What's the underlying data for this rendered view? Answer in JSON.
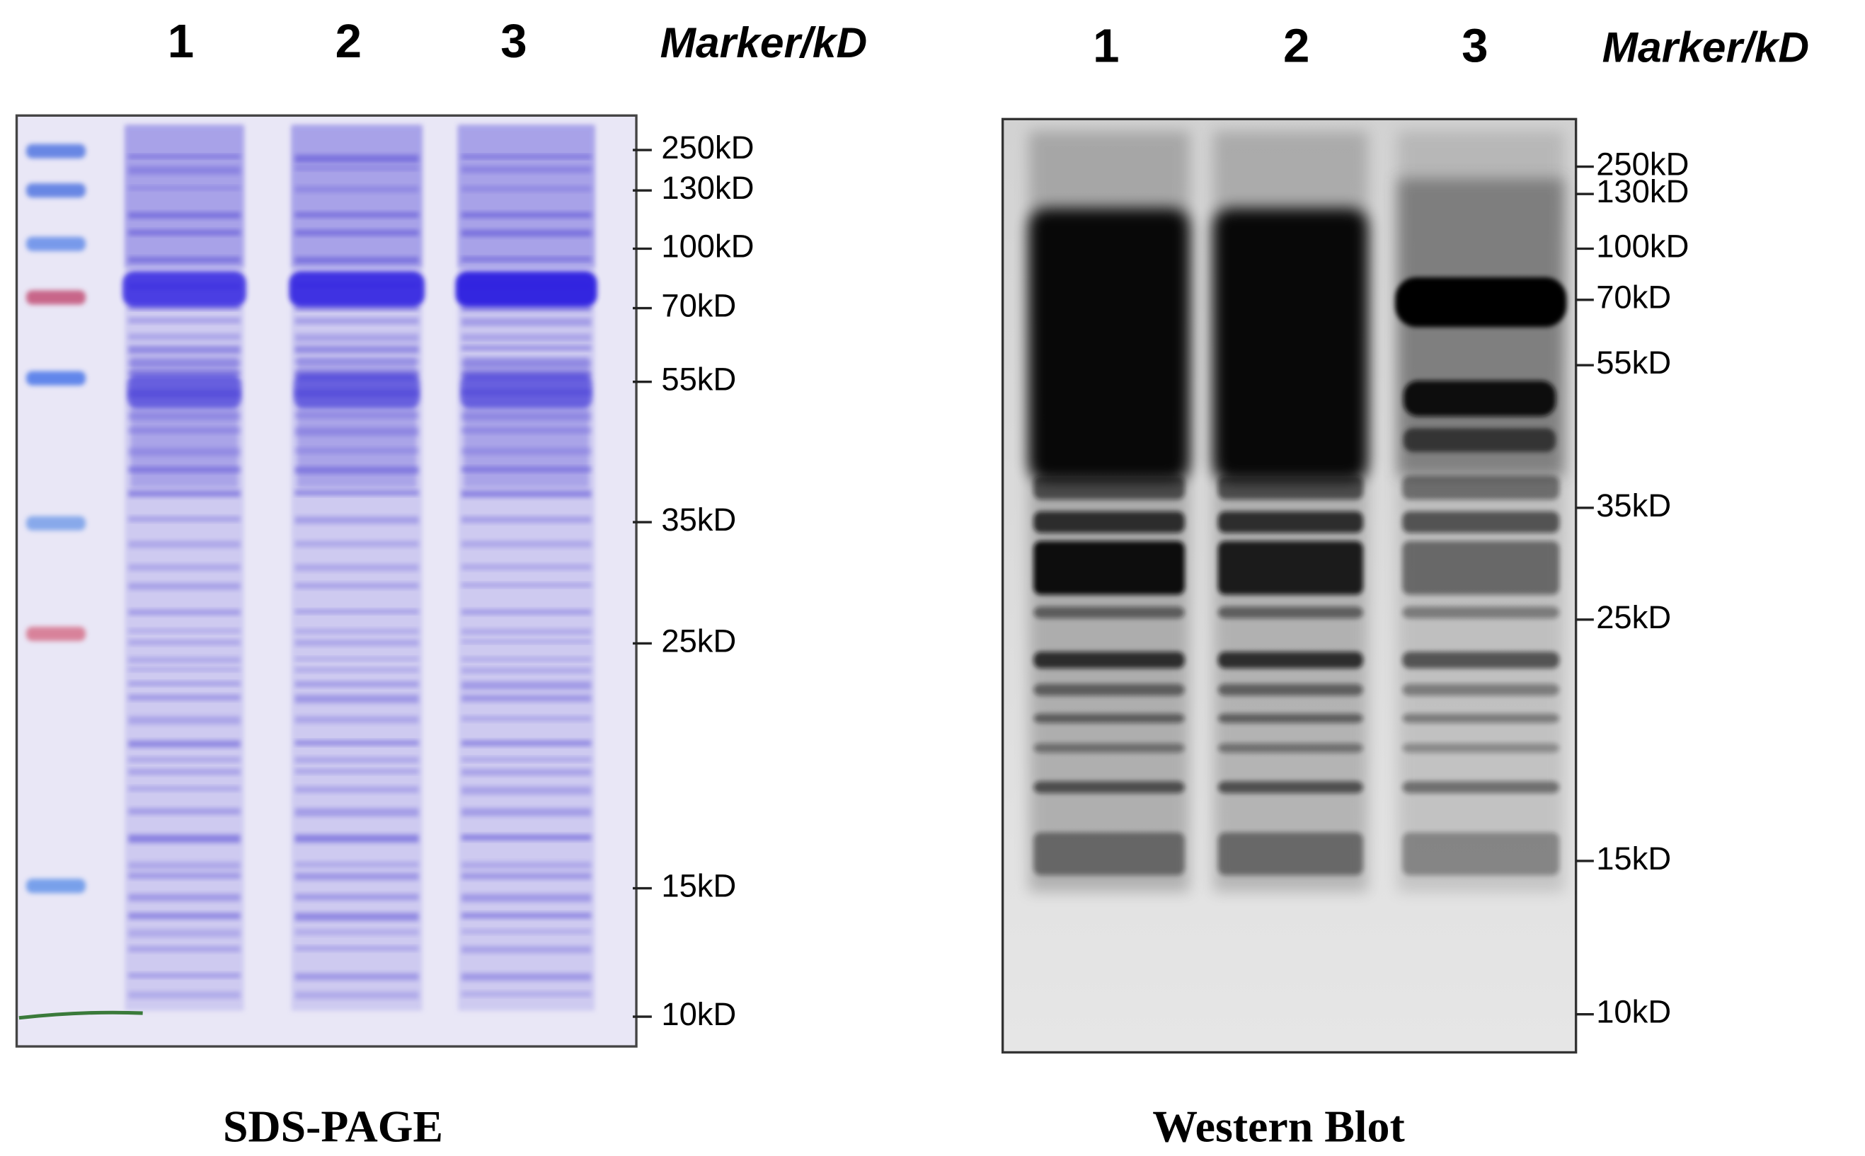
{
  "panels": [
    {
      "title": "SDS-PAGE",
      "lanes": [
        "1",
        "2",
        "3"
      ],
      "marker_header": "Marker/kD",
      "markers": [
        "250kD",
        "130kD",
        "100kD",
        "70kD",
        "55kD",
        "35kD",
        "25kD",
        "15kD",
        "10kD"
      ]
    },
    {
      "title": "Western Blot",
      "lanes": [
        "1",
        "2",
        "3"
      ],
      "marker_header": "Marker/kD",
      "markers": [
        "250kD",
        "130kD",
        "100kD",
        "70kD",
        "55kD",
        "35kD",
        "25kD",
        "15kD",
        "10kD"
      ]
    }
  ]
}
